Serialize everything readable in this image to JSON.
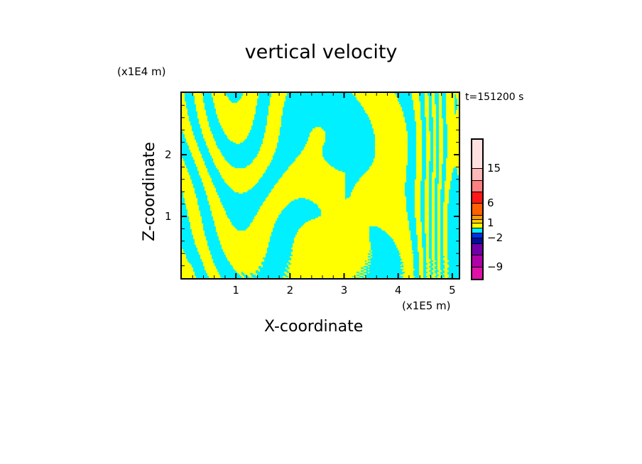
{
  "chart_data": {
    "type": "heatmap",
    "title": "vertical velocity",
    "xlabel": "X-coordinate",
    "ylabel": "Z-coordinate",
    "x_unit": "(x1E5 m)",
    "z_unit": "(x1E4 m)",
    "time_label": "t=151200 s",
    "xlim": [
      0,
      5.12
    ],
    "zlim": [
      0,
      3.0
    ],
    "xticks": [
      "1",
      "2",
      "3",
      "4",
      "5"
    ],
    "xtick_values": [
      1,
      2,
      3,
      4,
      5
    ],
    "zticks": [
      "1",
      "2"
    ],
    "ztick_values": [
      1,
      2
    ],
    "colorbar": {
      "levels": [
        -12,
        -9,
        -6,
        -3,
        -2,
        -1,
        0,
        1,
        2,
        3,
        6,
        9,
        12,
        15,
        21
      ],
      "colors": [
        "#e010a8",
        "#b000a8",
        "#7000a8",
        "#0010a0",
        "#0030e0",
        "#00eeff",
        "#ffff00",
        "#ffd000",
        "#ff9800",
        "#ff6000",
        "#ff1818",
        "#ff8080",
        "#ffb8b8",
        "#ffe0e0"
      ],
      "tick_labels": [
        "15",
        "6",
        "1",
        "-2",
        "-9"
      ],
      "tick_values": [
        15,
        6,
        1,
        -2,
        -9
      ]
    },
    "field_colors": {
      "positive": "#ffff00",
      "negative": "#00f0ff"
    }
  }
}
